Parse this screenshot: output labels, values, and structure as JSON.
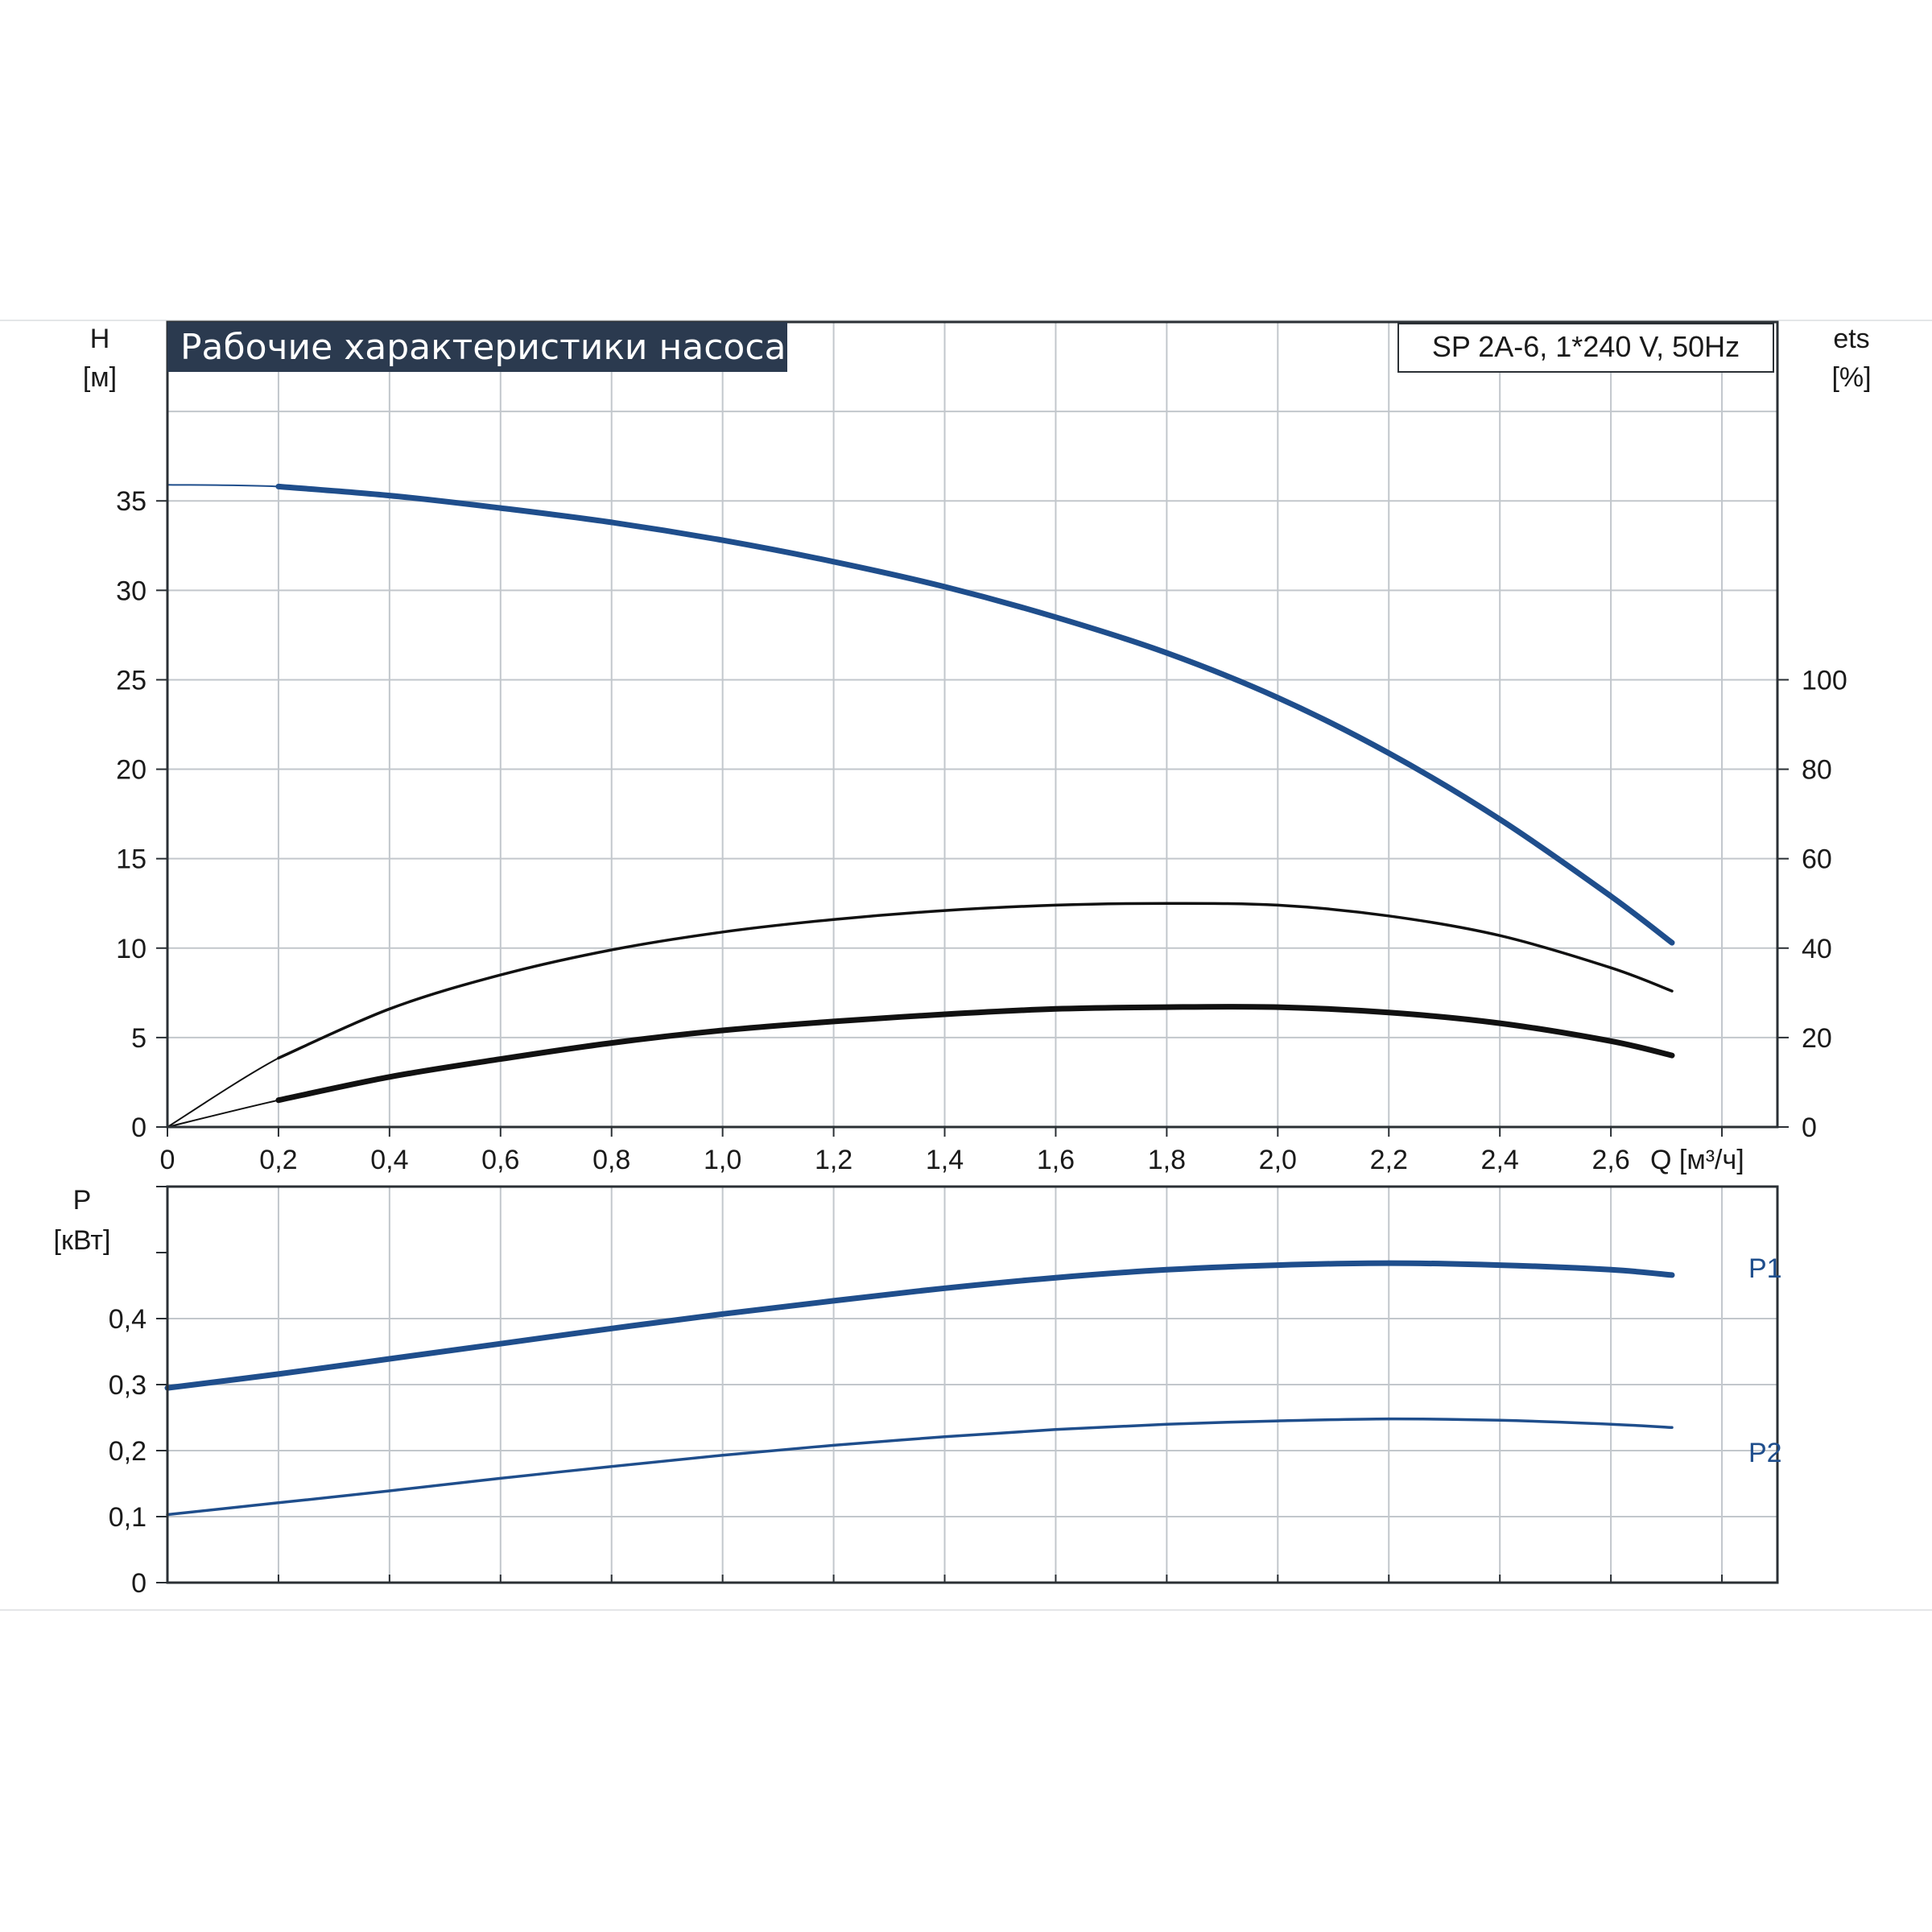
{
  "title": "Рабочие характеристики насоса",
  "model": "SP 2A-6, 1*240 V, 50Hz",
  "colors": {
    "title_bg": "#2b3a4f",
    "curve_blue": "#1f4e8c",
    "curve_black": "#111111",
    "grid": "#c2c7cc",
    "frame": "#2b3035"
  },
  "chart_data": [
    {
      "type": "line",
      "panel": "head-efficiency",
      "x_axis": {
        "label": "Q [м³/ч]",
        "range": [
          0,
          2.9
        ],
        "ticks": [
          0,
          0.2,
          0.4,
          0.6,
          0.8,
          1.0,
          1.2,
          1.4,
          1.6,
          1.8,
          2.0,
          2.2,
          2.4,
          2.6
        ],
        "tick_labels": [
          "0",
          "0,2",
          "0,4",
          "0,6",
          "0,8",
          "1,0",
          "1,2",
          "1,4",
          "1,6",
          "1,8",
          "2,0",
          "2,2",
          "2,4",
          "2,6"
        ],
        "grid_ticks": [
          0,
          0.2,
          0.4,
          0.6,
          0.8,
          1.0,
          1.2,
          1.4,
          1.6,
          1.8,
          2.0,
          2.2,
          2.4,
          2.6,
          2.8
        ]
      },
      "y_axis_left": {
        "label_line1": "H",
        "label_line2": "[м]",
        "range": [
          0,
          45
        ],
        "ticks": [
          0,
          5,
          10,
          15,
          20,
          25,
          30,
          35
        ],
        "tick_labels": [
          "0",
          "5",
          "10",
          "15",
          "20",
          "25",
          "30",
          "35"
        ],
        "grid_ticks": [
          0,
          5,
          10,
          15,
          20,
          25,
          30,
          35,
          40
        ]
      },
      "y_axis_right": {
        "label_line1": "ets",
        "label_line2": "[%]",
        "range": [
          0,
          180
        ],
        "ticks": [
          0,
          20,
          40,
          60,
          80,
          100
        ],
        "tick_labels": [
          "0",
          "20",
          "40",
          "60",
          "80",
          "100"
        ]
      },
      "grid": true,
      "series": [
        {
          "id": "head",
          "axis": "left",
          "color": "#1f4e8c",
          "style": "thick",
          "x": [
            0,
            0.2,
            0.4,
            0.6,
            0.8,
            1.0,
            1.2,
            1.4,
            1.6,
            1.8,
            2.0,
            2.2,
            2.4,
            2.6,
            2.71
          ],
          "y": [
            35.9,
            35.8,
            35.3,
            34.6,
            33.8,
            32.8,
            31.6,
            30.2,
            28.5,
            26.5,
            24.0,
            20.9,
            17.2,
            12.9,
            10.3
          ]
        },
        {
          "id": "efficiency-eta",
          "axis": "right",
          "color": "#111111",
          "style": "thin",
          "x": [
            0,
            0.2,
            0.4,
            0.6,
            0.8,
            1.0,
            1.2,
            1.4,
            1.6,
            1.8,
            2.0,
            2.2,
            2.4,
            2.6,
            2.71
          ],
          "y": [
            0,
            15.4,
            26.4,
            34.0,
            39.6,
            43.6,
            46.4,
            48.4,
            49.6,
            50.0,
            49.6,
            47.2,
            42.8,
            35.6,
            30.4
          ]
        },
        {
          "id": "total-efficiency",
          "axis": "right",
          "color": "#111111",
          "style": "thick",
          "x": [
            0,
            0.2,
            0.4,
            0.6,
            0.8,
            1.0,
            1.2,
            1.4,
            1.6,
            1.8,
            2.0,
            2.2,
            2.4,
            2.6,
            2.71
          ],
          "y": [
            0,
            6.0,
            11.2,
            15.2,
            18.8,
            21.6,
            23.6,
            25.2,
            26.4,
            26.8,
            26.8,
            25.6,
            23.2,
            19.2,
            16.0
          ]
        }
      ]
    },
    {
      "type": "line",
      "panel": "power",
      "x_axis": {
        "range": [
          0,
          2.9
        ],
        "grid_ticks": [
          0,
          0.2,
          0.4,
          0.6,
          0.8,
          1.0,
          1.2,
          1.4,
          1.6,
          1.8,
          2.0,
          2.2,
          2.4,
          2.6,
          2.8
        ]
      },
      "y_axis_left": {
        "label_line1": "P",
        "label_line2": "[кВт]",
        "range": [
          0,
          0.6
        ],
        "ticks": [
          0,
          0.1,
          0.2,
          0.3,
          0.4
        ],
        "tick_labels": [
          "0",
          "0,1",
          "0,2",
          "0,3",
          "0,4"
        ],
        "grid_ticks": [
          0,
          0.1,
          0.2,
          0.3,
          0.4
        ],
        "minor_ticks": [
          0.5,
          0.6
        ]
      },
      "grid": true,
      "series": [
        {
          "id": "p1",
          "name": "P1",
          "color": "#1f4e8c",
          "style": "thick",
          "x": [
            0,
            0.2,
            0.4,
            0.6,
            0.8,
            1.0,
            1.2,
            1.4,
            1.6,
            1.8,
            2.0,
            2.2,
            2.4,
            2.6,
            2.71
          ],
          "y": [
            0.295,
            0.316,
            0.339,
            0.362,
            0.385,
            0.407,
            0.427,
            0.446,
            0.462,
            0.474,
            0.481,
            0.484,
            0.481,
            0.474,
            0.466
          ]
        },
        {
          "id": "p2",
          "name": "P2",
          "color": "#1f4e8c",
          "style": "thin",
          "x": [
            0,
            0.2,
            0.4,
            0.6,
            0.8,
            1.0,
            1.2,
            1.4,
            1.6,
            1.8,
            2.0,
            2.2,
            2.4,
            2.6,
            2.71
          ],
          "y": [
            0.103,
            0.121,
            0.139,
            0.158,
            0.176,
            0.193,
            0.208,
            0.221,
            0.232,
            0.24,
            0.245,
            0.248,
            0.246,
            0.24,
            0.235
          ]
        }
      ]
    }
  ]
}
